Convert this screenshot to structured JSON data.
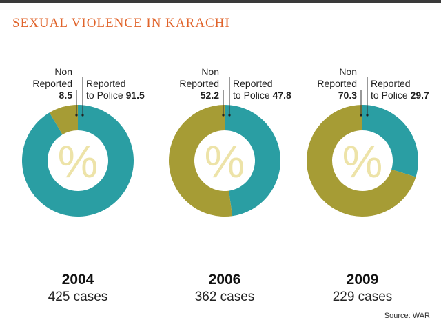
{
  "title": "SEXUAL VIOLENCE IN KARACHI",
  "source": "Source: WAR",
  "colors": {
    "reported": "#2a9ea3",
    "non_reported": "#a69c35",
    "title": "#e0632a",
    "center_symbol": "#ede3a8",
    "rule": "#3a3a3a",
    "text": "#222222"
  },
  "center_symbol": "%",
  "chart_data": [
    {
      "type": "pie",
      "style": "donut",
      "year": "2004",
      "cases": "425 cases",
      "slices": [
        {
          "label_lines": [
            "Reported",
            "to Police"
          ],
          "value": 91.5,
          "value_text": "91.5",
          "color": "#2a9ea3"
        },
        {
          "label_lines": [
            "Non",
            "Reported"
          ],
          "value": 8.5,
          "value_text": "8.5",
          "color": "#a69c35"
        }
      ]
    },
    {
      "type": "pie",
      "style": "donut",
      "year": "2006",
      "cases": "362 cases",
      "slices": [
        {
          "label_lines": [
            "Reported",
            "to Police"
          ],
          "value": 47.8,
          "value_text": "47.8",
          "color": "#2a9ea3"
        },
        {
          "label_lines": [
            "Non",
            "Reported"
          ],
          "value": 52.2,
          "value_text": "52.2",
          "color": "#a69c35"
        }
      ]
    },
    {
      "type": "pie",
      "style": "donut",
      "year": "2009",
      "cases": "229 cases",
      "slices": [
        {
          "label_lines": [
            "Reported",
            "to Police"
          ],
          "value": 29.7,
          "value_text": "29.7",
          "color": "#2a9ea3"
        },
        {
          "label_lines": [
            "Non",
            "Reported"
          ],
          "value": 70.3,
          "value_text": "70.3",
          "color": "#a69c35"
        }
      ]
    }
  ]
}
